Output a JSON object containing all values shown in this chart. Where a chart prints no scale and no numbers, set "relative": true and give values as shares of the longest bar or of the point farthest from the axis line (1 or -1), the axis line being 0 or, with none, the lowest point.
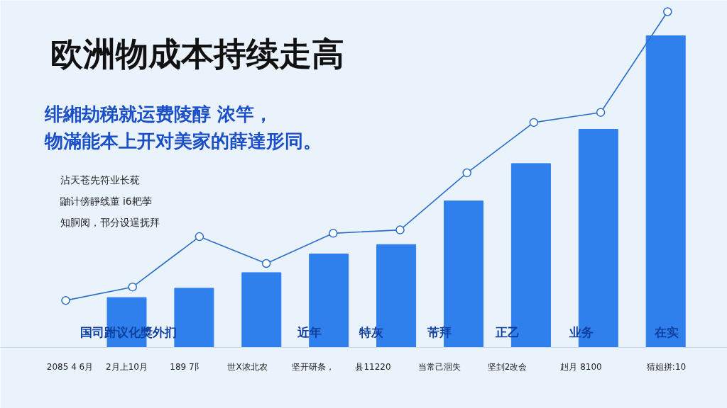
{
  "chart_data": [
    {
      "type": "bar",
      "relative": true,
      "title": "欧洲物成本持续走高",
      "subtitle": "绯緗劫稊就运费陵醇 浓竿，物滿能本上开对美家的薛達形同。",
      "categories": [
        null,
        null,
        null,
        null,
        null,
        null,
        null,
        null,
        null
      ],
      "series": [
        {
          "color": "#2f80ed",
          "values": [
            0.16,
            0.19,
            0.24,
            0.3,
            0.33,
            0.47,
            0.59,
            0.7,
            1.0
          ]
        }
      ],
      "annotations": [
        "沾天苍先符业长莸",
        "鼬计傍靜线董 i6耙荸",
        "知胴阅，邗分设逞抚拜",
        "国司跗议化獎外扪",
        "近年",
        "特灰",
        "芾拜",
        "正乙",
        "业务",
        "在实",
        "2085 4 6月",
        "2月上10月",
        "189 7阝",
        "世X浓北农",
        "坚开研条，",
        "县11220",
        "当常己洇失",
        "坚刲2改会",
        "赳月 8100",
        "猜姐拼:10"
      ]
    },
    {
      "type": "line",
      "relative": true,
      "marker": "circle",
      "categories": [
        null,
        null,
        null,
        null,
        null,
        null,
        null,
        null,
        null,
        null
      ],
      "series": [
        {
          "color": "#2a6fc9",
          "values": [
            0.14,
            0.18,
            0.33,
            0.25,
            0.34,
            0.35,
            0.52,
            0.67,
            0.7,
            1.0
          ]
        }
      ]
    }
  ]
}
